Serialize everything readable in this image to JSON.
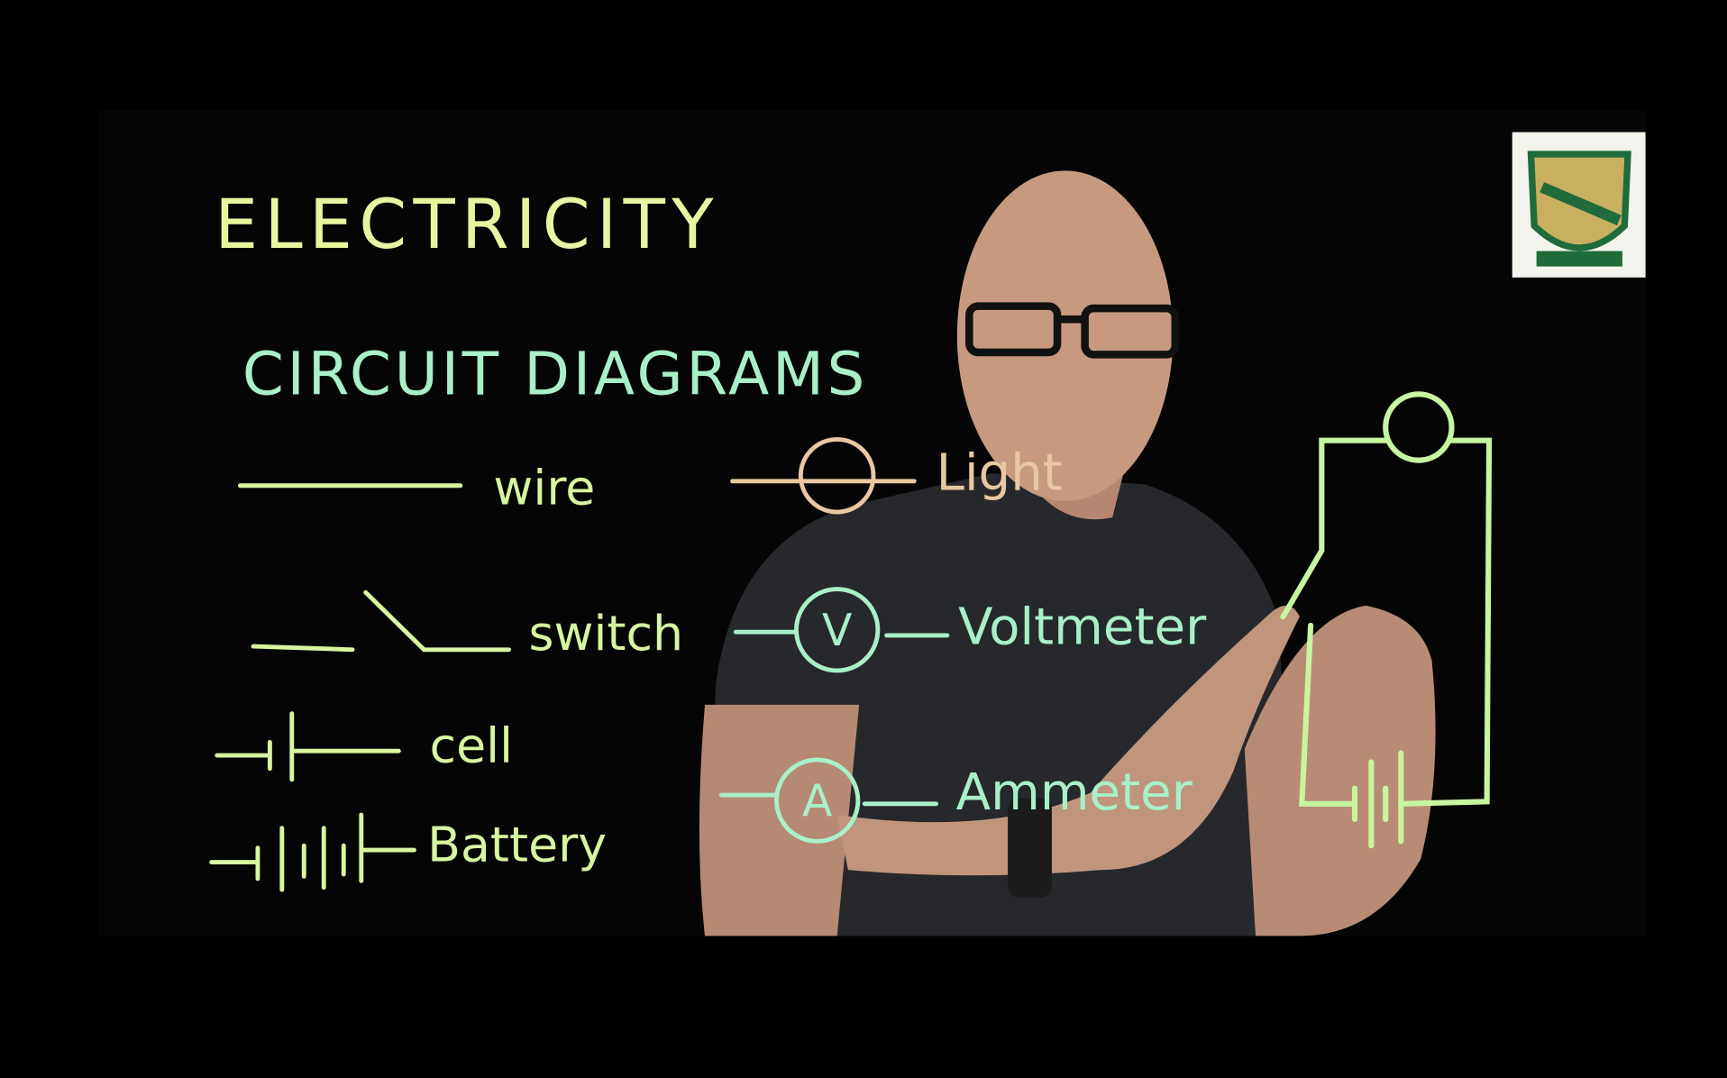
{
  "board": {
    "title": "ELECTRICITY",
    "subtitle": "CIRCUIT DIAGRAMS",
    "symbols": [
      "wire",
      "switch",
      "cell",
      "Battery"
    ],
    "meters": [
      {
        "label": "Light"
      },
      {
        "label": "Voltmeter",
        "symbol": "V"
      },
      {
        "label": "Ammeter",
        "symbol": "A"
      }
    ]
  }
}
